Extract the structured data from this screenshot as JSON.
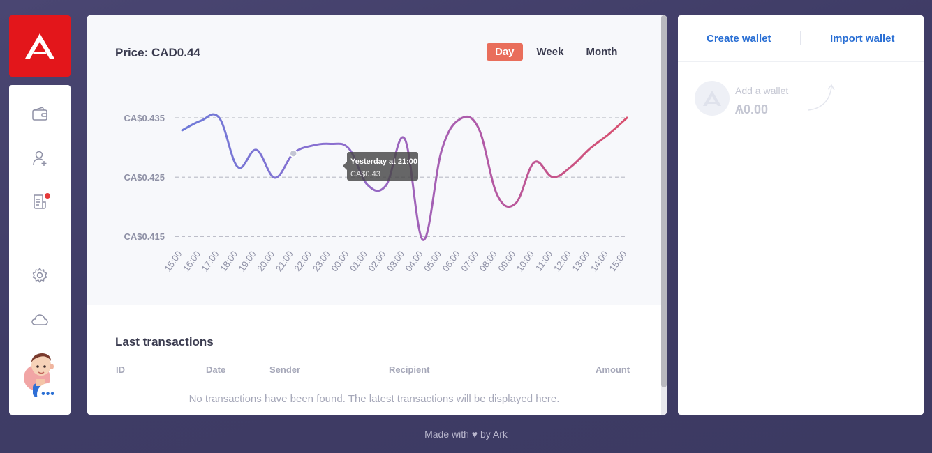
{
  "app": {
    "logo": "ark-logo",
    "brand_color": "#e3161b",
    "accent_color": "#2a6fd4"
  },
  "sidebar": {
    "items": [
      {
        "name": "wallet-icon",
        "has_notification": false
      },
      {
        "name": "add-contact-icon",
        "has_notification": false
      },
      {
        "name": "document-icon",
        "has_notification": true
      },
      {
        "name": "settings-icon",
        "has_notification": false
      },
      {
        "name": "cloud-icon",
        "has_notification": false
      }
    ],
    "avatar_menu": "•••"
  },
  "chart": {
    "price_label": "Price: CAD0.44",
    "periods": [
      {
        "label": "Day",
        "active": true
      },
      {
        "label": "Week",
        "active": false
      },
      {
        "label": "Month",
        "active": false
      }
    ],
    "tooltip": {
      "title": "Yesterday at 21:00",
      "value": "CA$0.43"
    }
  },
  "chart_data": {
    "type": "line",
    "x": [
      "15:00",
      "16:00",
      "17:00",
      "18:00",
      "19:00",
      "20:00",
      "21:00",
      "22:00",
      "23:00",
      "00:00",
      "01:00",
      "02:00",
      "03:00",
      "04:00",
      "05:00",
      "06:00",
      "07:00",
      "08:00",
      "09:00",
      "10:00",
      "11:00",
      "12:00",
      "13:00",
      "14:00",
      "15:00"
    ],
    "series": [
      {
        "values": [
          0.4329,
          0.4345,
          0.435,
          0.4267,
          0.4296,
          0.4249,
          0.429,
          0.4303,
          0.4306,
          0.4298,
          0.4237,
          0.4236,
          0.4315,
          0.4144,
          0.4295,
          0.4348,
          0.4332,
          0.422,
          0.4206,
          0.4275,
          0.425,
          0.4268,
          0.4298,
          0.4322,
          0.435
        ]
      }
    ],
    "yticks": [
      "CA$0.435",
      "CA$0.425",
      "CA$0.415"
    ],
    "ytick_values": [
      0.435,
      0.425,
      0.415
    ],
    "ylim": [
      0.4135,
      0.437
    ],
    "grid": true,
    "line_colors": [
      "#6f7ad8",
      "#8a6fd0",
      "#b05aa8",
      "#d94f6e"
    ]
  },
  "transactions": {
    "title": "Last transactions",
    "columns": [
      "ID",
      "Date",
      "Sender",
      "Recipient",
      "Amount"
    ],
    "empty_message": "No transactions have been found. The latest transactions will be displayed here."
  },
  "wallet_panel": {
    "create_label": "Create wallet",
    "import_label": "Import wallet",
    "add_wallet_label": "Add a wallet",
    "add_wallet_balance": "Ѧ0.00"
  },
  "footer": {
    "prefix": "Made with",
    "heart": "♥",
    "suffix": "by Ark"
  }
}
